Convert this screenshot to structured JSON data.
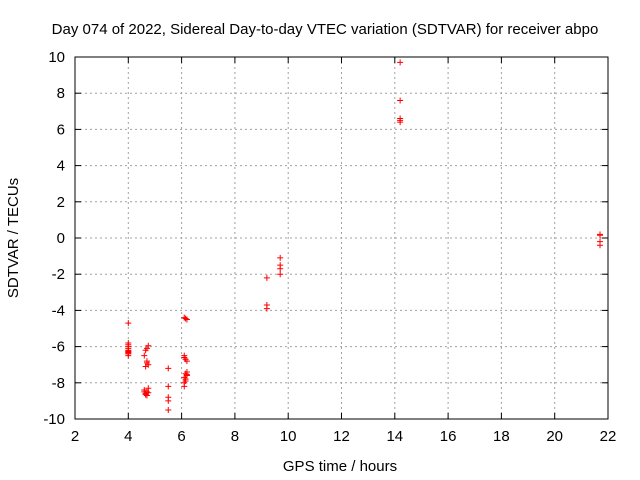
{
  "chart_data": {
    "type": "scatter",
    "title": "Day 074 of 2022, Sidereal Day-to-day VTEC variation (SDTVAR) for receiver abpo",
    "xlabel": "GPS time / hours",
    "ylabel": "SDTVAR / TECUs",
    "xlim": [
      2,
      22
    ],
    "ylim": [
      -10,
      10
    ],
    "xticks": [
      2,
      4,
      6,
      8,
      10,
      12,
      14,
      16,
      18,
      20,
      22
    ],
    "yticks": [
      -10,
      -8,
      -6,
      -4,
      -2,
      0,
      2,
      4,
      6,
      8,
      10
    ],
    "grid": true,
    "marker": "+",
    "color": "#ff0000",
    "series": [
      {
        "name": "SDTVAR",
        "x": [
          4.0,
          4.0,
          4.0,
          4.0,
          4.0,
          4.0,
          4.0,
          4.0,
          4.0,
          4.0,
          4.0,
          4.6,
          4.6,
          4.65,
          4.65,
          4.7,
          4.7,
          4.75,
          4.75,
          4.65,
          4.7,
          4.75,
          4.6,
          4.7,
          4.75,
          4.65,
          4.7,
          5.5,
          5.5,
          5.5,
          5.5,
          5.5,
          6.1,
          6.15,
          6.2,
          6.1,
          6.15,
          6.2,
          6.1,
          6.15,
          6.2,
          6.1,
          6.15,
          6.2,
          6.1,
          6.1,
          6.15,
          6.2,
          9.2,
          9.2,
          9.2,
          9.7,
          9.7,
          9.7,
          9.7,
          14.2,
          14.2,
          14.2,
          14.2,
          14.2,
          21.7,
          21.7,
          21.7,
          21.7
        ],
        "y": [
          -4.7,
          -5.9,
          -6.0,
          -6.1,
          -6.2,
          -6.25,
          -6.3,
          -6.35,
          -6.4,
          -6.5,
          -5.8,
          -8.4,
          -8.5,
          -8.6,
          -8.65,
          -8.7,
          -8.5,
          -8.3,
          -8.55,
          -6.2,
          -6.1,
          -5.95,
          -6.5,
          -6.8,
          -7.0,
          -7.1,
          -6.9,
          -7.2,
          -8.2,
          -8.8,
          -9.0,
          -9.5,
          -4.4,
          -4.45,
          -4.5,
          -6.6,
          -6.7,
          -6.8,
          -6.5,
          -7.5,
          -7.6,
          -7.7,
          -7.8,
          -7.4,
          -8.0,
          -8.2,
          -7.9,
          -7.55,
          -2.2,
          -3.7,
          -3.9,
          -1.1,
          -1.5,
          -1.7,
          -2.0,
          9.7,
          7.6,
          6.6,
          6.5,
          6.4,
          0.2,
          0.15,
          -0.2,
          -0.4
        ]
      }
    ]
  }
}
